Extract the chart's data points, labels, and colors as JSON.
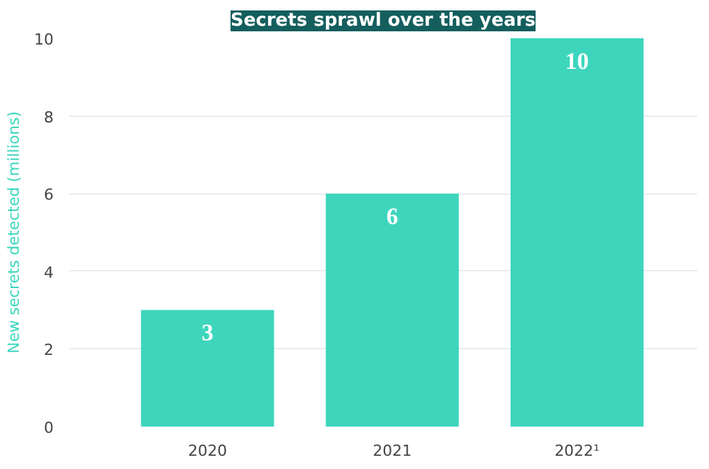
{
  "chart_data": {
    "type": "bar",
    "title": "Secrets sprawl over the years",
    "ylabel": "New secrets detected (millions)",
    "categories": [
      "2020",
      "2021",
      "2022¹"
    ],
    "values": [
      3,
      6,
      10
    ],
    "color": "#3dd6bd",
    "data_labels": true,
    "ylim": [
      0,
      10
    ],
    "yticks": [
      0,
      2,
      4,
      6,
      8,
      10
    ],
    "grid": "y"
  }
}
